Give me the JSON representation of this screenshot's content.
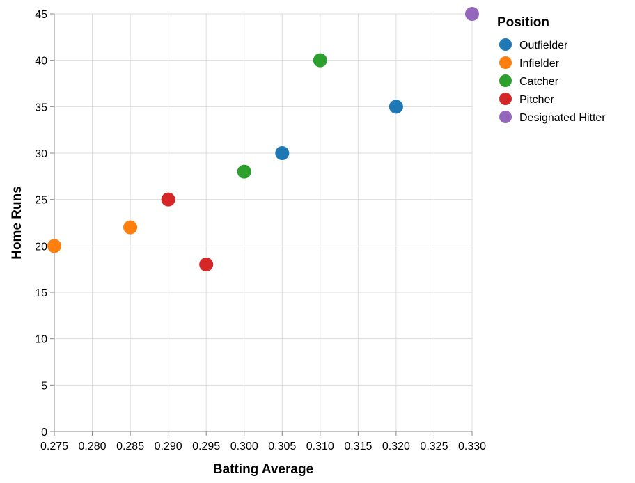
{
  "chart_data": {
    "type": "scatter",
    "title": "",
    "xlabel": "Batting Average",
    "ylabel": "Home Runs",
    "xlim": [
      0.275,
      0.33
    ],
    "ylim": [
      0,
      45
    ],
    "x_ticks": [
      0.275,
      0.28,
      0.285,
      0.29,
      0.295,
      0.3,
      0.305,
      0.31,
      0.315,
      0.32,
      0.325,
      0.33
    ],
    "x_tick_labels": [
      "0.275",
      "0.280",
      "0.285",
      "0.290",
      "0.295",
      "0.300",
      "0.305",
      "0.310",
      "0.315",
      "0.320",
      "0.325",
      "0.330"
    ],
    "y_ticks": [
      0,
      5,
      10,
      15,
      20,
      25,
      30,
      35,
      40,
      45
    ],
    "y_tick_labels": [
      "0",
      "5",
      "10",
      "15",
      "20",
      "25",
      "30",
      "35",
      "40",
      "45"
    ],
    "grid": true,
    "legend": {
      "title": "Position",
      "placement": "right",
      "entries": [
        {
          "name": "Outfielder",
          "color": "#1f77b4"
        },
        {
          "name": "Infielder",
          "color": "#ff7f0e"
        },
        {
          "name": "Catcher",
          "color": "#2ca02c"
        },
        {
          "name": "Pitcher",
          "color": "#d62728"
        },
        {
          "name": "Designated Hitter",
          "color": "#9467bd"
        }
      ]
    },
    "series": [
      {
        "name": "Outfielder",
        "color": "#1f77b4",
        "points": [
          {
            "x": 0.305,
            "y": 30
          },
          {
            "x": 0.32,
            "y": 35
          }
        ]
      },
      {
        "name": "Infielder",
        "color": "#ff7f0e",
        "points": [
          {
            "x": 0.275,
            "y": 20
          },
          {
            "x": 0.285,
            "y": 22
          }
        ]
      },
      {
        "name": "Catcher",
        "color": "#2ca02c",
        "points": [
          {
            "x": 0.3,
            "y": 28
          },
          {
            "x": 0.31,
            "y": 40
          }
        ]
      },
      {
        "name": "Pitcher",
        "color": "#d62728",
        "points": [
          {
            "x": 0.29,
            "y": 25
          },
          {
            "x": 0.295,
            "y": 18
          }
        ]
      },
      {
        "name": "Designated Hitter",
        "color": "#9467bd",
        "points": [
          {
            "x": 0.33,
            "y": 45
          }
        ]
      }
    ]
  }
}
